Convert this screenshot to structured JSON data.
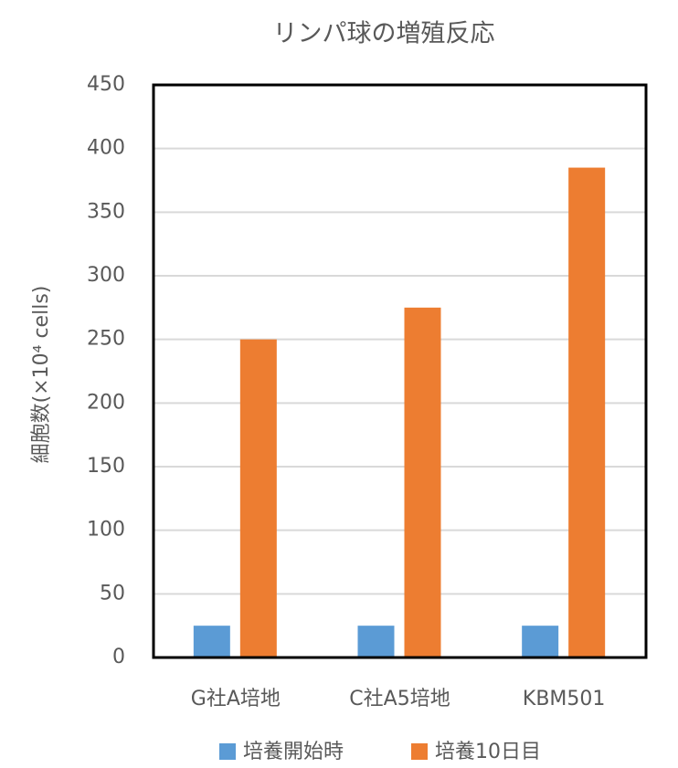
{
  "chart_data": {
    "type": "bar",
    "title": "リンパ球の増殖反応",
    "y_label": "細胞数(×10⁴ cells)",
    "categories": [
      "G社A培地",
      "C社A5培地",
      "KBM501"
    ],
    "series": [
      {
        "name": "培養開始時",
        "color": "#5b9bd5",
        "values": [
          25,
          25,
          25
        ]
      },
      {
        "name": "培養10日目",
        "color": "#ed7d31",
        "values": [
          250,
          275,
          385
        ]
      }
    ],
    "ylim": [
      0,
      450
    ],
    "yticks": [
      0,
      50,
      100,
      150,
      200,
      250,
      300,
      350,
      400,
      450
    ],
    "grid": true,
    "legend": "bottom"
  }
}
